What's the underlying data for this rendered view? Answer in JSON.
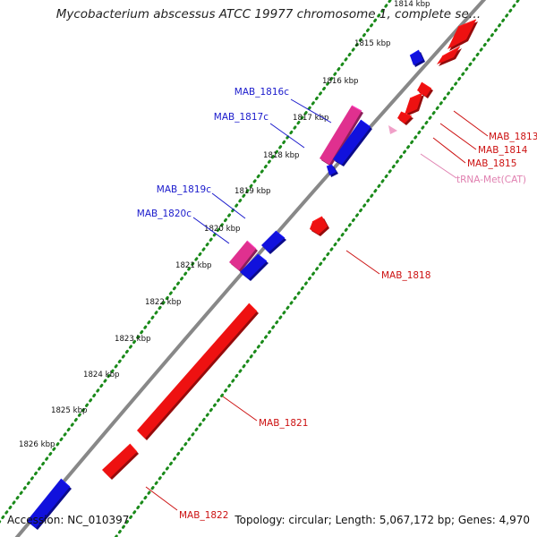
{
  "title": "Mycobacterium abscessus ATCC 19977 chromosome 1, complete se…",
  "footer": {
    "accession": "Accession: NC_010397",
    "summary": "Topology: circular; Length: 5,067,172 bp; Genes: 4,970"
  },
  "colors": {
    "forward_gene": "#ee1111",
    "reverse_gene": "#1111dd",
    "reverse_rna": "#e0308f",
    "trna": "#f0a0c8",
    "backbone": "#888888",
    "tick_dots": "#1a8a1a",
    "forward_label": "#cc1111",
    "reverse_label": "#1a1acc",
    "trna_label": "#e080b0"
  },
  "ticks": [
    "1814 kbp",
    "1815 kbp",
    "1816 kbp",
    "1817 kbp",
    "1818 kbp",
    "1819 kbp",
    "1820 kbp",
    "1821 kbp",
    "1822 kbp",
    "1823 kbp",
    "1824 kbp",
    "1825 kbp",
    "1826 kbp"
  ],
  "features": [
    {
      "name": "MAB_1813",
      "strand": "forward",
      "type": "gene"
    },
    {
      "name": "MAB_1814",
      "strand": "forward",
      "type": "gene"
    },
    {
      "name": "MAB_1815",
      "strand": "forward",
      "type": "gene"
    },
    {
      "name": "tRNA-Met(CAT)",
      "strand": "forward",
      "type": "tRNA"
    },
    {
      "name": "MAB_1816c",
      "strand": "reverse",
      "type": "gene"
    },
    {
      "name": "MAB_1817c",
      "strand": "reverse",
      "type": "gene"
    },
    {
      "name": "MAB_1818",
      "strand": "forward",
      "type": "gene"
    },
    {
      "name": "MAB_1819c",
      "strand": "reverse",
      "type": "gene"
    },
    {
      "name": "MAB_1820c",
      "strand": "reverse",
      "type": "gene"
    },
    {
      "name": "MAB_1821",
      "strand": "forward",
      "type": "gene"
    },
    {
      "name": "MAB_1822",
      "strand": "forward",
      "type": "gene"
    }
  ]
}
